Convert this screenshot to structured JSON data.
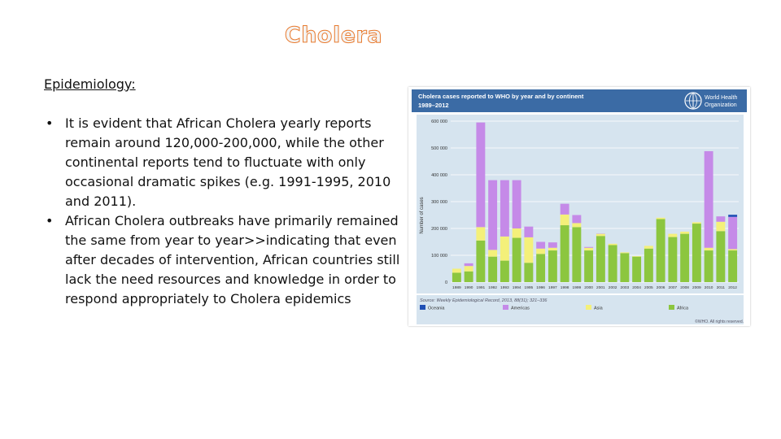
{
  "slide": {
    "title": "Cholera",
    "heading": "Epidemiology:",
    "bullets": [
      "It is evident that African Cholera yearly reports remain around 120,000-200,000, while the other continental reports tend to fluctuate with only occasional dramatic spikes (e.g. 1991-1995, 2010 and 2011).",
      "African Cholera outbreaks have primarily remained the same from year to year>>indicating that even after decades of intervention, African countries still lack the need resources and knowledge in order to respond appropriately to Cholera epidemics"
    ]
  },
  "colors": {
    "title_outline": "#e87a2e",
    "header_band": "#3b6ba5",
    "plot_bg": "#d6e4ef",
    "africa": "#8cc63f",
    "asia": "#f4f07a",
    "americas": "#c58ae8",
    "oceania": "#1f4fb4"
  },
  "chart_data": {
    "type": "bar",
    "title": "Cholera cases reported to WHO by year and by continent",
    "subtitle": "1989–2012",
    "logo_text": [
      "World Health",
      "Organization"
    ],
    "ylabel": "Number of cases",
    "ylim": [
      0,
      600000
    ],
    "yticks": [
      0,
      100000,
      200000,
      300000,
      400000,
      500000,
      600000
    ],
    "ytick_labels": [
      "0",
      "100 000",
      "200 000",
      "300 000",
      "400 000",
      "500 000",
      "600 000"
    ],
    "categories": [
      "1989",
      "1990",
      "1991",
      "1992",
      "1993",
      "1994",
      "1995",
      "1996",
      "1997",
      "1998",
      "1999",
      "2000",
      "2001",
      "2002",
      "2003",
      "2004",
      "2005",
      "2006",
      "2007",
      "2008",
      "2009",
      "2010",
      "2011",
      "2012"
    ],
    "xtick_labels": [
      "1989",
      "1990",
      "1991",
      "1992",
      "1993",
      "1994",
      "1995",
      "1996",
      "1997",
      "1998",
      "1999",
      "2000",
      "2001",
      "2002",
      "2003",
      "2004",
      "2005",
      "2006",
      "2007",
      "2008",
      "2009",
      "2010",
      "2011",
      "2012"
    ],
    "grid": true,
    "legend_position": "bottom",
    "series": [
      {
        "name": "Africa",
        "color": "#8cc63f",
        "values": [
          35000,
          40000,
          155000,
          95000,
          80000,
          165000,
          72000,
          105000,
          118000,
          212000,
          205000,
          118000,
          172000,
          138000,
          108000,
          95000,
          125000,
          235000,
          168000,
          180000,
          218000,
          118000,
          190000,
          118000
        ]
      },
      {
        "name": "Asia",
        "color": "#f4f07a",
        "values": [
          15000,
          20000,
          50000,
          25000,
          90000,
          35000,
          95000,
          20000,
          10000,
          40000,
          15000,
          10000,
          8000,
          5000,
          3000,
          2000,
          10000,
          5000,
          12000,
          8000,
          5000,
          10000,
          35000,
          5000
        ]
      },
      {
        "name": "Americas",
        "color": "#c58ae8",
        "values": [
          0,
          10000,
          390000,
          260000,
          210000,
          180000,
          40000,
          25000,
          20000,
          40000,
          30000,
          3000,
          1000,
          0,
          0,
          0,
          0,
          0,
          0,
          0,
          0,
          360000,
          20000,
          120000
        ]
      },
      {
        "name": "Oceania",
        "color": "#1f4fb4",
        "values": [
          0,
          0,
          0,
          0,
          0,
          0,
          0,
          0,
          0,
          0,
          0,
          0,
          0,
          0,
          0,
          0,
          0,
          0,
          0,
          0,
          0,
          0,
          0,
          8000
        ]
      }
    ],
    "source": "Source: Weekly Epidemiological Record, 2013, 88(31); 321–336",
    "copyright": "©WHO. All rights reserved."
  }
}
